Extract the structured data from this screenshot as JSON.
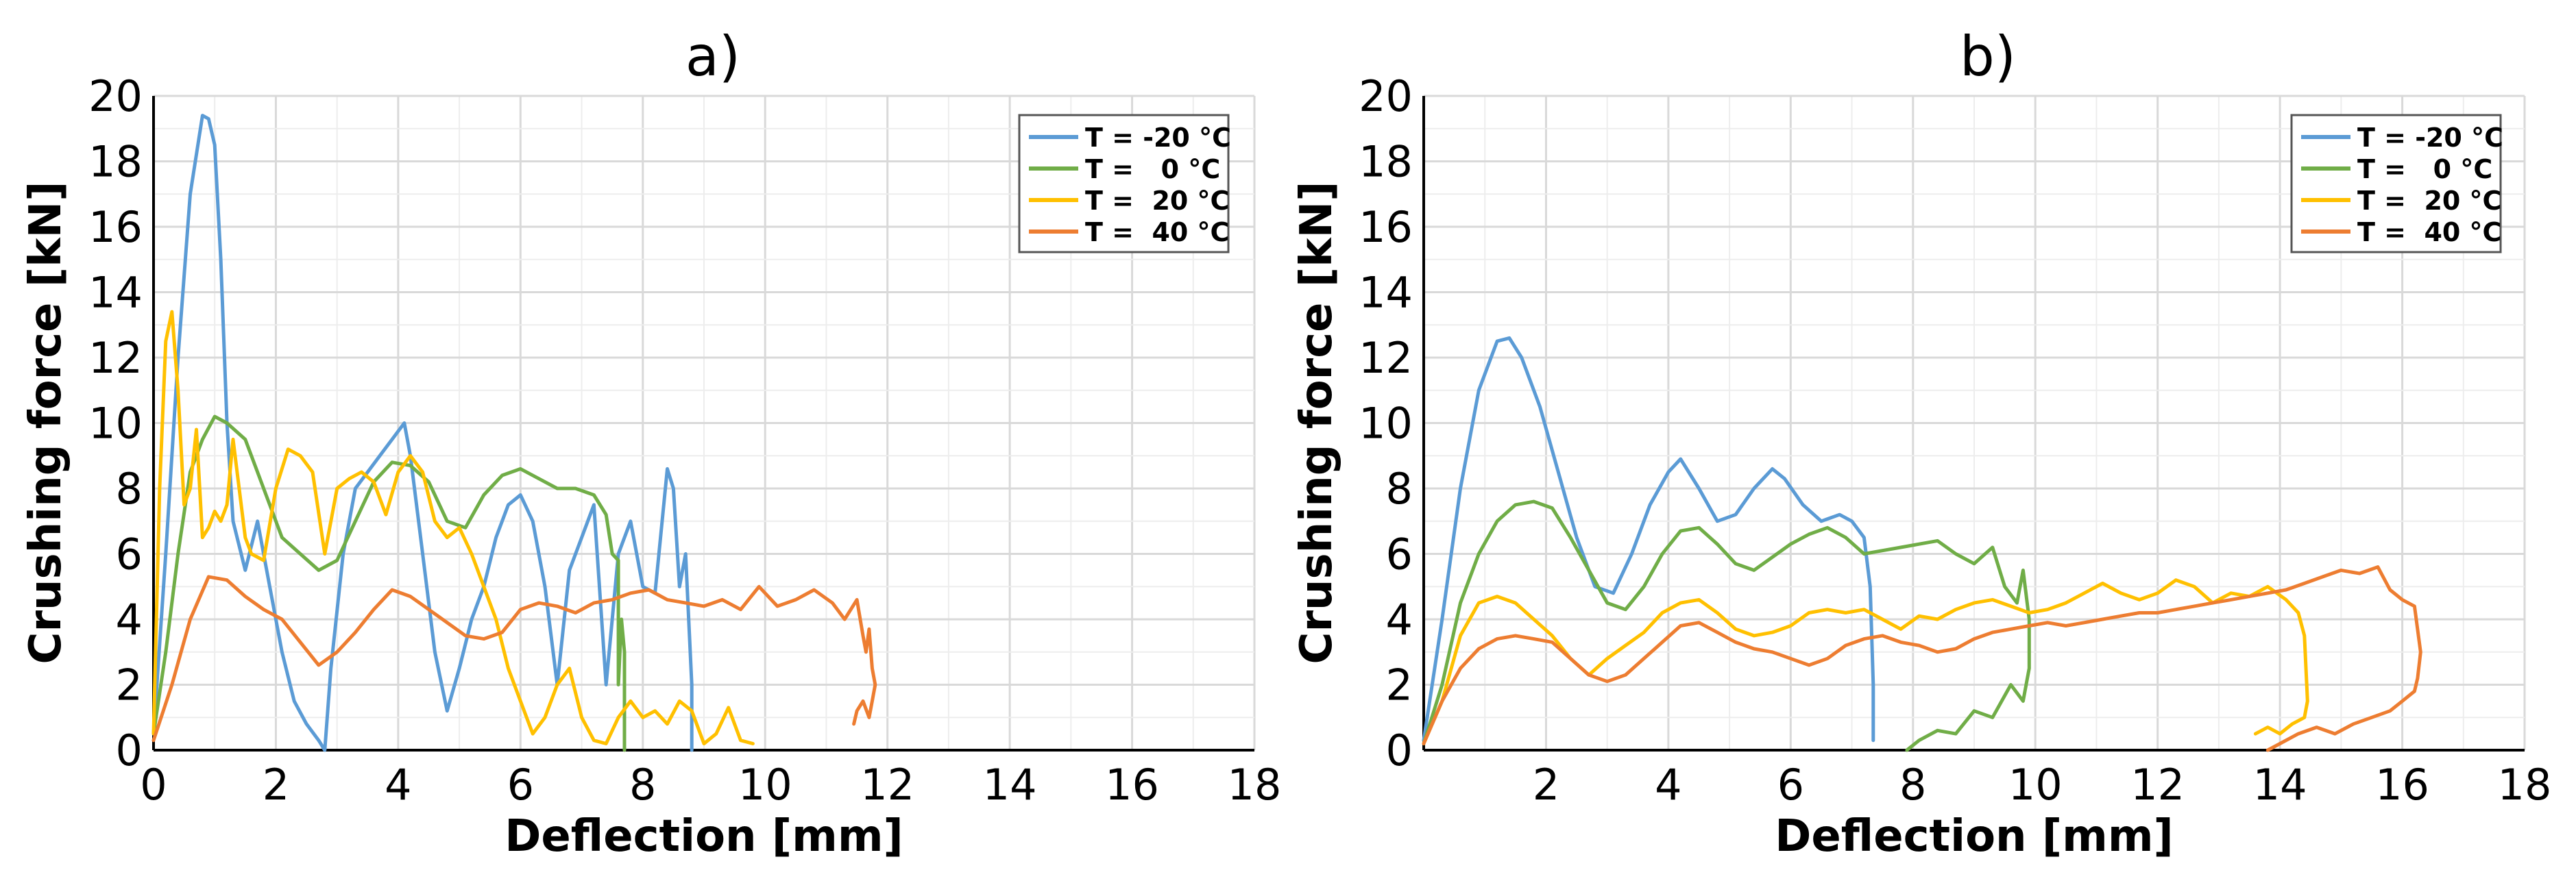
{
  "chart_data": [
    {
      "type": "line",
      "title": "a)",
      "xlabel": "Deflection [mm]",
      "ylabel": "Crushing force [kN]",
      "xlim": [
        0,
        18
      ],
      "ylim": [
        0,
        20
      ],
      "xticks": [
        "0",
        "2",
        "4",
        "6",
        "8",
        "10",
        "12",
        "14",
        "16",
        "18"
      ],
      "yticks": [
        "0",
        "2",
        "4",
        "6",
        "8",
        "10",
        "12",
        "14",
        "16",
        "18",
        "20"
      ],
      "grid": true,
      "legend_position": "top-right",
      "series": [
        {
          "name": "T = -20 °C",
          "color": "#5b9bd5",
          "x": [
            0,
            0.2,
            0.4,
            0.6,
            0.8,
            0.9,
            1.0,
            1.1,
            1.2,
            1.3,
            1.5,
            1.7,
            1.9,
            2.1,
            2.3,
            2.5,
            2.7,
            2.8,
            2.9,
            3.1,
            3.3,
            3.5,
            3.7,
            3.9,
            4.1,
            4.2,
            4.4,
            4.6,
            4.8,
            5.0,
            5.2,
            5.4,
            5.6,
            5.8,
            6.0,
            6.2,
            6.4,
            6.6,
            6.8,
            7.0,
            7.2,
            7.4,
            7.6,
            7.8,
            8.0,
            8.2,
            8.4,
            8.5,
            8.6,
            8.7,
            8.75,
            8.8,
            8.8
          ],
          "y": [
            0.5,
            6,
            12,
            17,
            19.4,
            19.3,
            18.5,
            15,
            10,
            7,
            5.5,
            7,
            5,
            3,
            1.5,
            0.8,
            0.3,
            0,
            2.5,
            6,
            8,
            8.5,
            9,
            9.5,
            10,
            9,
            6,
            3,
            1.2,
            2.5,
            4,
            5,
            6.5,
            7.5,
            7.8,
            7,
            5,
            2,
            5.5,
            6.5,
            7.5,
            2,
            6,
            7,
            5,
            4.8,
            8.6,
            8,
            5,
            6,
            4,
            2,
            0
          ]
        },
        {
          "name": "T =   0 °C",
          "color": "#70ad47",
          "x": [
            0,
            0.2,
            0.4,
            0.6,
            0.8,
            1.0,
            1.2,
            1.5,
            1.8,
            2.1,
            2.4,
            2.7,
            3.0,
            3.3,
            3.6,
            3.9,
            4.2,
            4.5,
            4.8,
            5.1,
            5.4,
            5.7,
            6.0,
            6.3,
            6.6,
            6.9,
            7.2,
            7.4,
            7.5,
            7.6,
            7.6,
            7.65,
            7.7,
            7.7
          ],
          "y": [
            0.5,
            3,
            6,
            8.5,
            9.5,
            10.2,
            10,
            9.5,
            8,
            6.5,
            6,
            5.5,
            5.8,
            7,
            8.2,
            8.8,
            8.7,
            8.2,
            7,
            6.8,
            7.8,
            8.4,
            8.6,
            8.3,
            8,
            8,
            7.8,
            7.2,
            6,
            5.8,
            2,
            4,
            3,
            0
          ]
        },
        {
          "name": "T =  20 °C",
          "color": "#ffc000",
          "x": [
            0,
            0.1,
            0.2,
            0.3,
            0.4,
            0.5,
            0.6,
            0.7,
            0.8,
            0.9,
            1.0,
            1.1,
            1.2,
            1.3,
            1.4,
            1.5,
            1.6,
            1.8,
            2.0,
            2.2,
            2.4,
            2.6,
            2.8,
            3.0,
            3.2,
            3.4,
            3.6,
            3.8,
            4.0,
            4.2,
            4.4,
            4.6,
            4.8,
            5.0,
            5.2,
            5.4,
            5.6,
            5.8,
            6.0,
            6.2,
            6.4,
            6.6,
            6.8,
            7.0,
            7.2,
            7.4,
            7.6,
            7.8,
            8.0,
            8.2,
            8.4,
            8.6,
            8.8,
            9.0,
            9.2,
            9.4,
            9.6,
            9.8
          ],
          "y": [
            0.5,
            8,
            12.5,
            13.4,
            11,
            7.5,
            8,
            9.8,
            6.5,
            6.8,
            7.3,
            7,
            7.5,
            9.5,
            8,
            6.5,
            6,
            5.8,
            8,
            9.2,
            9,
            8.5,
            6,
            8,
            8.3,
            8.5,
            8.2,
            7.2,
            8.5,
            9,
            8.5,
            7,
            6.5,
            6.8,
            6,
            5,
            4,
            2.5,
            1.5,
            0.5,
            1,
            2,
            2.5,
            1,
            0.3,
            0.2,
            1,
            1.5,
            1,
            1.2,
            0.8,
            1.5,
            1.2,
            0.2,
            0.5,
            1.3,
            0.3,
            0.2
          ]
        },
        {
          "name": "T =  40 °C",
          "color": "#ed7d31",
          "x": [
            0,
            0.3,
            0.6,
            0.9,
            1.2,
            1.5,
            1.8,
            2.1,
            2.4,
            2.7,
            3.0,
            3.3,
            3.6,
            3.9,
            4.2,
            4.5,
            4.8,
            5.1,
            5.4,
            5.7,
            6.0,
            6.3,
            6.6,
            6.9,
            7.2,
            7.5,
            7.8,
            8.1,
            8.4,
            8.7,
            9.0,
            9.3,
            9.6,
            9.9,
            10.2,
            10.5,
            10.8,
            11.1,
            11.3,
            11.5,
            11.6,
            11.65,
            11.7,
            11.75,
            11.8,
            11.75,
            11.7,
            11.6,
            11.5,
            11.45
          ],
          "y": [
            0.3,
            2,
            4,
            5.3,
            5.2,
            4.7,
            4.3,
            4,
            3.3,
            2.6,
            3,
            3.6,
            4.3,
            4.9,
            4.7,
            4.3,
            3.9,
            3.5,
            3.4,
            3.6,
            4.3,
            4.5,
            4.4,
            4.2,
            4.5,
            4.6,
            4.8,
            4.9,
            4.6,
            4.5,
            4.4,
            4.6,
            4.3,
            5,
            4.4,
            4.6,
            4.9,
            4.5,
            4,
            4.6,
            3.5,
            3,
            3.7,
            2.5,
            2,
            1.5,
            1,
            1.5,
            1.2,
            0.8
          ]
        }
      ]
    },
    {
      "type": "line",
      "title": "b)",
      "xlabel": "Deflection [mm]",
      "ylabel": "Crushing force [kN]",
      "xlim": [
        0,
        18
      ],
      "ylim": [
        0,
        20
      ],
      "xticks": [
        "2",
        "4",
        "6",
        "8",
        "10",
        "12",
        "14",
        "16",
        "18"
      ],
      "yticks": [
        "0",
        "2",
        "4",
        "6",
        "8",
        "10",
        "12",
        "14",
        "16",
        "18",
        "20"
      ],
      "grid": true,
      "legend_position": "top-right",
      "series": [
        {
          "name": "T = -20 °C",
          "color": "#5b9bd5",
          "x": [
            0,
            0.3,
            0.6,
            0.9,
            1.2,
            1.4,
            1.6,
            1.9,
            2.2,
            2.5,
            2.8,
            3.1,
            3.4,
            3.7,
            4.0,
            4.2,
            4.5,
            4.8,
            5.1,
            5.4,
            5.7,
            5.9,
            6.2,
            6.5,
            6.8,
            7.0,
            7.2,
            7.3,
            7.35,
            7.35
          ],
          "y": [
            0.3,
            4,
            8,
            11,
            12.5,
            12.6,
            12,
            10.5,
            8.5,
            6.5,
            5,
            4.8,
            6,
            7.5,
            8.5,
            8.9,
            8,
            7,
            7.2,
            8,
            8.6,
            8.3,
            7.5,
            7,
            7.2,
            7,
            6.5,
            5,
            2,
            0.3
          ]
        },
        {
          "name": "T =   0 °C",
          "color": "#70ad47",
          "x": [
            0,
            0.3,
            0.6,
            0.9,
            1.2,
            1.5,
            1.8,
            2.1,
            2.4,
            2.7,
            3.0,
            3.3,
            3.6,
            3.9,
            4.2,
            4.5,
            4.8,
            5.1,
            5.4,
            5.7,
            6.0,
            6.3,
            6.6,
            6.9,
            7.2,
            7.5,
            7.8,
            8.1,
            8.4,
            8.7,
            9.0,
            9.3,
            9.5,
            9.7,
            9.8,
            9.9,
            9.9,
            9.8,
            9.6,
            9.3,
            9.0,
            8.7,
            8.4,
            8.1,
            7.9
          ],
          "y": [
            0.2,
            2,
            4.5,
            6,
            7,
            7.5,
            7.6,
            7.4,
            6.5,
            5.5,
            4.5,
            4.3,
            5,
            6,
            6.7,
            6.8,
            6.3,
            5.7,
            5.5,
            5.9,
            6.3,
            6.6,
            6.8,
            6.5,
            6,
            6.1,
            6.2,
            6.3,
            6.4,
            6,
            5.7,
            6.2,
            5,
            4.5,
            5.5,
            4,
            2.5,
            1.5,
            2,
            1,
            1.2,
            0.5,
            0.6,
            0.3,
            0
          ]
        },
        {
          "name": "T =  20 °C",
          "color": "#ffc000",
          "x": [
            0,
            0.3,
            0.6,
            0.9,
            1.2,
            1.5,
            1.8,
            2.1,
            2.4,
            2.7,
            3.0,
            3.3,
            3.6,
            3.9,
            4.2,
            4.5,
            4.8,
            5.1,
            5.4,
            5.7,
            6.0,
            6.3,
            6.6,
            6.9,
            7.2,
            7.5,
            7.8,
            8.1,
            8.4,
            8.7,
            9.0,
            9.3,
            9.6,
            9.9,
            10.2,
            10.5,
            10.8,
            11.1,
            11.4,
            11.7,
            12.0,
            12.3,
            12.6,
            12.9,
            13.2,
            13.5,
            13.8,
            14.1,
            14.3,
            14.4,
            14.45,
            14.4,
            14.2,
            14.0,
            13.8,
            13.6
          ],
          "y": [
            0.2,
            1.5,
            3.5,
            4.5,
            4.7,
            4.5,
            4,
            3.5,
            2.8,
            2.3,
            2.8,
            3.2,
            3.6,
            4.2,
            4.5,
            4.6,
            4.2,
            3.7,
            3.5,
            3.6,
            3.8,
            4.2,
            4.3,
            4.2,
            4.3,
            4,
            3.7,
            4.1,
            4,
            4.3,
            4.5,
            4.6,
            4.4,
            4.2,
            4.3,
            4.5,
            4.8,
            5.1,
            4.8,
            4.6,
            4.8,
            5.2,
            5,
            4.5,
            4.8,
            4.7,
            5,
            4.6,
            4.2,
            3.5,
            1.5,
            1,
            0.8,
            0.5,
            0.7,
            0.5
          ]
        },
        {
          "name": "T =  40 °C",
          "color": "#ed7d31",
          "x": [
            0,
            0.3,
            0.6,
            0.9,
            1.2,
            1.5,
            1.8,
            2.1,
            2.4,
            2.7,
            3.0,
            3.3,
            3.6,
            3.9,
            4.2,
            4.5,
            4.8,
            5.1,
            5.4,
            5.7,
            6.0,
            6.3,
            6.6,
            6.9,
            7.2,
            7.5,
            7.8,
            8.1,
            8.4,
            8.7,
            9.0,
            9.3,
            9.6,
            9.9,
            10.2,
            10.5,
            10.8,
            11.1,
            11.4,
            11.7,
            12.0,
            12.3,
            12.6,
            12.9,
            13.2,
            13.5,
            13.8,
            14.1,
            14.4,
            14.7,
            15.0,
            15.3,
            15.6,
            15.8,
            16.0,
            16.2,
            16.3,
            16.25,
            16.2,
            16.0,
            15.8,
            15.5,
            15.2,
            14.9,
            14.6,
            14.3,
            14.0,
            13.8
          ],
          "y": [
            0.2,
            1.5,
            2.5,
            3.1,
            3.4,
            3.5,
            3.4,
            3.3,
            2.8,
            2.3,
            2.1,
            2.3,
            2.8,
            3.3,
            3.8,
            3.9,
            3.6,
            3.3,
            3.1,
            3,
            2.8,
            2.6,
            2.8,
            3.2,
            3.4,
            3.5,
            3.3,
            3.2,
            3,
            3.1,
            3.4,
            3.6,
            3.7,
            3.8,
            3.9,
            3.8,
            3.9,
            4,
            4.1,
            4.2,
            4.2,
            4.3,
            4.4,
            4.5,
            4.6,
            4.7,
            4.8,
            4.9,
            5.1,
            5.3,
            5.5,
            5.4,
            5.6,
            4.9,
            4.6,
            4.4,
            3,
            2.2,
            1.8,
            1.5,
            1.2,
            1,
            0.8,
            0.5,
            0.7,
            0.5,
            0.2,
            0
          ]
        }
      ]
    }
  ]
}
